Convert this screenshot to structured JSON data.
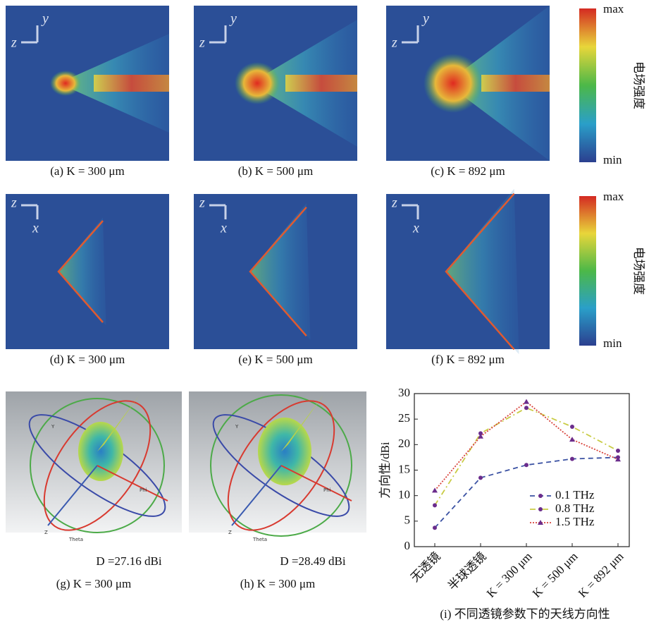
{
  "field_panels": [
    {
      "caption": "(a) K = 300 μm",
      "axis_v": "y",
      "axis_h": "z"
    },
    {
      "caption": "(b) K = 500 μm",
      "axis_v": "y",
      "axis_h": "z"
    },
    {
      "caption": "(c) K = 892 μm",
      "axis_v": "y",
      "axis_h": "z"
    },
    {
      "caption": "(d) K = 300 μm",
      "axis_v": "x",
      "axis_h": "z"
    },
    {
      "caption": "(e) K = 500 μm",
      "axis_v": "x",
      "axis_h": "z"
    },
    {
      "caption": "(f) K = 892 μm",
      "axis_v": "x",
      "axis_h": "z"
    }
  ],
  "colorbars": [
    {
      "max": "max",
      "min": "min",
      "label": "电场强度"
    },
    {
      "max": "max",
      "min": "min",
      "label": "电场强度"
    }
  ],
  "antenna_panels": [
    {
      "directivity": "D =27.16 dBi",
      "caption": "(g) K = 300 μm",
      "axes": [
        "Y",
        "Phi",
        "Z",
        "Theta"
      ]
    },
    {
      "directivity": "D =28.49 dBi",
      "caption": "(h) K = 300 μm",
      "axes": [
        "Y",
        "Phi",
        "Z",
        "Theta"
      ]
    }
  ],
  "chart_data": {
    "type": "line",
    "caption": "(i) 不同透镜参数下的天线方向性",
    "y_label": "方向性/dBi",
    "categories": [
      "无透镜",
      "半球透镜",
      "K = 300 μm",
      "K = 500 μm",
      "K = 892 μm"
    ],
    "series": [
      {
        "name": "0.1 THz",
        "color": "#3b52a3",
        "dash": "dashed",
        "marker": "circle",
        "values": [
          3.7,
          13.5,
          16,
          17.2,
          17.5
        ]
      },
      {
        "name": "0.8 THz",
        "color": "#c9cc45",
        "dash": "dashdot",
        "marker": "circle",
        "values": [
          8.1,
          22.2,
          27.2,
          23.5,
          18.8
        ]
      },
      {
        "name": "1.5 THz",
        "color": "#d8443c",
        "dash": "dotted",
        "marker": "triangle",
        "values": [
          11,
          21.6,
          28.4,
          21,
          17.1
        ]
      }
    ],
    "marker_color": "#6b2d8c",
    "ylim": [
      0,
      30
    ],
    "yticks": [
      0,
      5,
      10,
      15,
      20,
      25,
      30
    ],
    "legend": "lower right"
  }
}
